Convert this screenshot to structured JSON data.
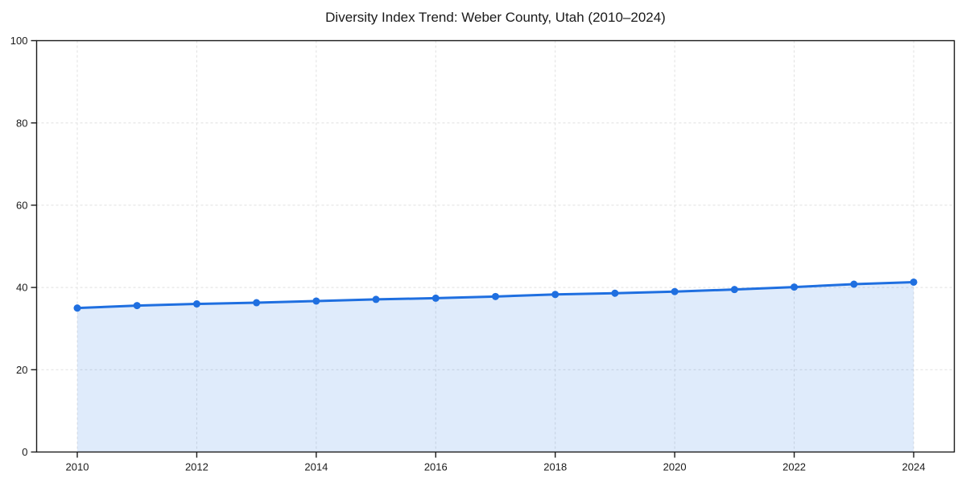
{
  "page": {
    "background": "#ffffff"
  },
  "chart_data": {
    "type": "line",
    "title": "Diversity Index Trend: Weber County, Utah (2010–2024)",
    "x": [
      2010,
      2011,
      2012,
      2013,
      2014,
      2015,
      2016,
      2017,
      2018,
      2019,
      2020,
      2021,
      2022,
      2023,
      2024
    ],
    "series": [
      {
        "name": "Diversity Index",
        "values": [
          35.0,
          35.6,
          36.0,
          36.3,
          36.7,
          37.1,
          37.4,
          37.8,
          38.3,
          38.6,
          39.0,
          39.5,
          40.1,
          40.8,
          41.3
        ]
      }
    ],
    "xlabel": "",
    "ylabel": "",
    "ylim": [
      0,
      100
    ],
    "yticks": [
      0,
      20,
      40,
      60,
      80,
      100
    ],
    "xticks": [
      2010,
      2012,
      2014,
      2016,
      2018,
      2020,
      2022,
      2024
    ],
    "grid": true,
    "grid_style": "dashed",
    "legend_position": "none",
    "area_fill_to_zero": true,
    "marker": "circle",
    "colors": {
      "line": "#1f6fe0",
      "marker": "#1f6fe0",
      "area_fill": "rgba(31,111,224,0.14)",
      "grid": "#e0e0e0",
      "spine": "#1a1a1a",
      "tick_text": "#1a1a1a",
      "title_text": "#1a1a1a"
    }
  }
}
